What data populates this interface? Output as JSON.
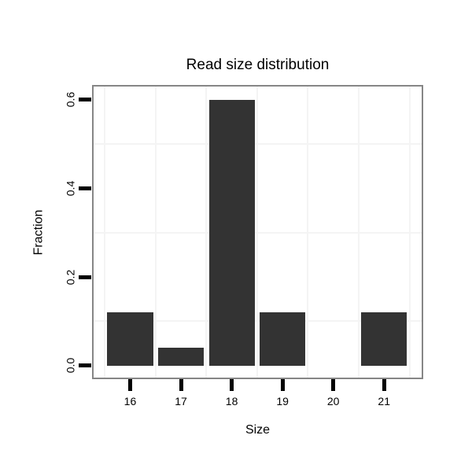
{
  "chart_data": {
    "type": "bar",
    "title": "Read size distribution",
    "xlabel": "Size",
    "ylabel": "Fraction",
    "categories": [
      "16",
      "17",
      "18",
      "19",
      "20",
      "21"
    ],
    "x": [
      16,
      17,
      18,
      19,
      20,
      21
    ],
    "values": [
      0.12,
      0.04,
      0.6,
      0.12,
      0.0,
      0.12
    ],
    "bar_width": 0.9,
    "xlim": [
      15.28,
      21.74
    ],
    "ylim": [
      -0.027,
      0.63
    ],
    "yticks": [
      0.0,
      0.2,
      0.4,
      0.6
    ],
    "ytick_labels": [
      "0.0",
      "0.2",
      "0.4",
      "0.6"
    ],
    "minor_grid_y": [
      0.1,
      0.3,
      0.5
    ],
    "minor_grid_x": [
      15.5,
      16.5,
      17.5,
      18.5,
      19.5,
      20.5,
      21.5
    ],
    "grid": "minor-gridlines-only",
    "legend": "none",
    "colors": {
      "bar": "#333333",
      "grid": "#f4f4f4",
      "panel_border": "#868686",
      "tick": "#000000",
      "text": "#000000",
      "background": "#ffffff"
    }
  }
}
